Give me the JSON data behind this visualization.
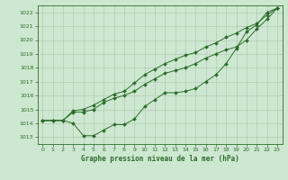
{
  "background_color": "#cde8d0",
  "grid_color": "#b0ccb0",
  "line_color": "#2d6a2d",
  "marker": "D",
  "marker_size": 2,
  "title": "Graphe pression niveau de la mer (hPa)",
  "xlim": [
    -0.5,
    23.5
  ],
  "ylim": [
    1012.5,
    1022.5
  ],
  "yticks": [
    1013,
    1014,
    1015,
    1016,
    1017,
    1018,
    1019,
    1020,
    1021,
    1022
  ],
  "xticks": [
    0,
    1,
    2,
    3,
    4,
    5,
    6,
    7,
    8,
    9,
    10,
    11,
    12,
    13,
    14,
    15,
    16,
    17,
    18,
    19,
    20,
    21,
    22,
    23
  ],
  "series_lower": [
    1014.2,
    1014.2,
    1014.2,
    1014.0,
    1013.1,
    1013.1,
    1013.5,
    1013.9,
    1013.9,
    1014.3,
    1015.2,
    1015.7,
    1016.2,
    1016.2,
    1016.3,
    1016.5,
    1017.0,
    1017.5,
    1018.3,
    1019.4,
    1020.6,
    1021.1,
    1022.0,
    1022.3
  ],
  "series_mid": [
    1014.2,
    1014.2,
    1014.2,
    1014.8,
    1014.8,
    1015.0,
    1015.5,
    1015.8,
    1016.0,
    1016.3,
    1016.8,
    1017.2,
    1017.6,
    1017.8,
    1018.0,
    1018.3,
    1018.7,
    1019.0,
    1019.3,
    1019.5,
    1020.0,
    1020.8,
    1021.5,
    1022.3
  ],
  "series_upper": [
    1014.2,
    1014.2,
    1014.2,
    1014.9,
    1015.0,
    1015.3,
    1015.7,
    1016.1,
    1016.3,
    1016.9,
    1017.5,
    1017.9,
    1018.3,
    1018.6,
    1018.9,
    1019.1,
    1019.5,
    1019.8,
    1020.2,
    1020.5,
    1020.9,
    1021.2,
    1021.8,
    1022.3
  ]
}
